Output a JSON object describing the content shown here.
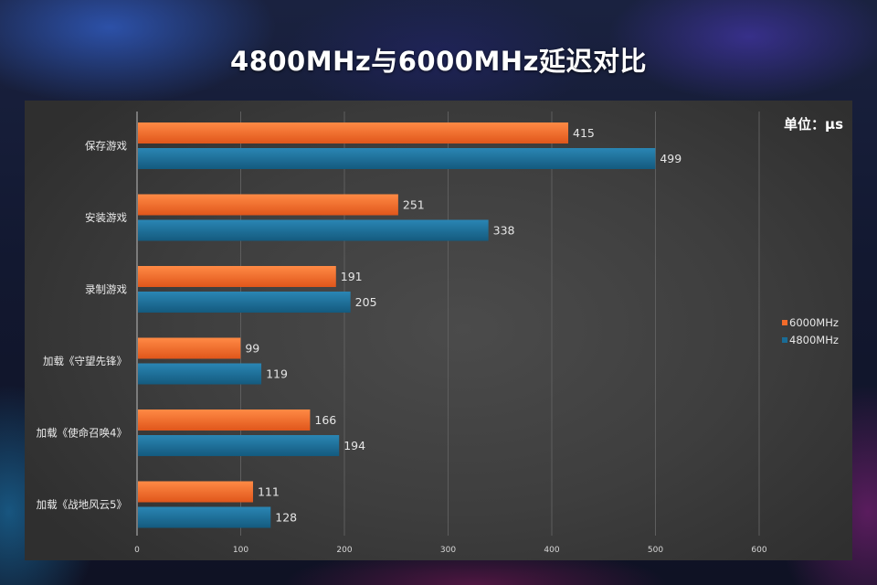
{
  "chart_data": {
    "type": "bar",
    "orientation": "horizontal",
    "title": "4800MHz与6000MHz延迟对比",
    "unit_label": "单位：μs",
    "categories": [
      "保存游戏",
      "安装游戏",
      "录制游戏",
      "加载《守望先锋》",
      "加载《使命召唤4》",
      "加载《战地风云5》"
    ],
    "series": [
      {
        "name": "6000MHz",
        "color": "#f26b2a",
        "values": [
          415,
          251,
          191,
          99,
          166,
          111
        ]
      },
      {
        "name": "4800MHz",
        "color": "#1a6c96",
        "values": [
          499,
          338,
          205,
          119,
          194,
          128
        ]
      }
    ],
    "xlim": [
      0,
      600
    ],
    "xticks": [
      0,
      100,
      200,
      300,
      400,
      500,
      600
    ],
    "grid": true,
    "data_labels": true,
    "legend_position": "right"
  }
}
